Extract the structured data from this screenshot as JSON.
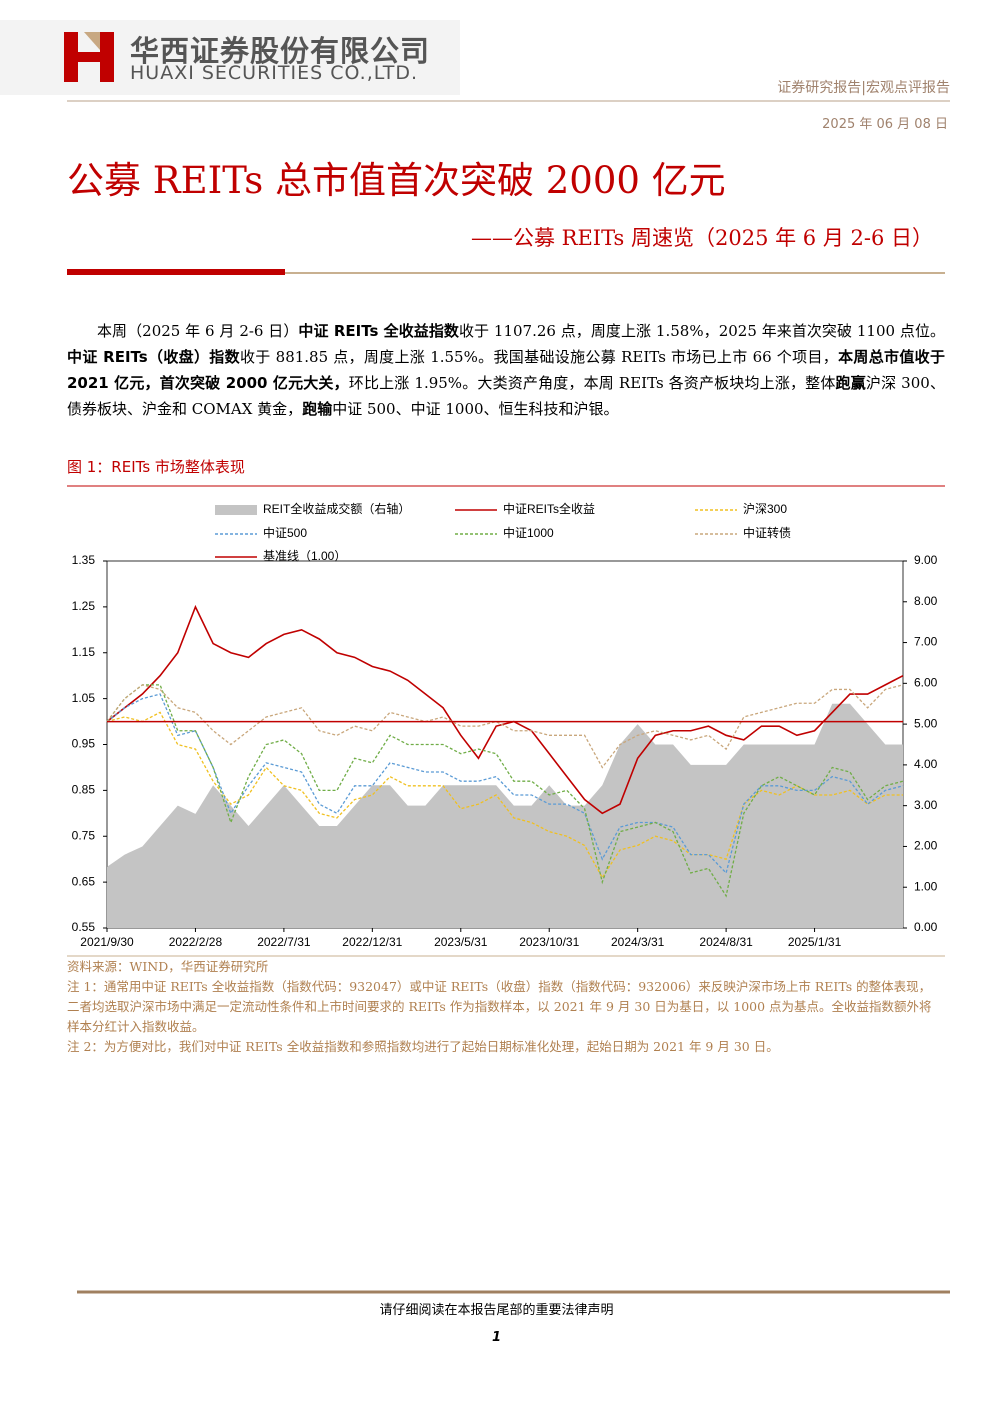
{
  "header": {
    "company_cn": "华西证券股份有限公司",
    "company_en": "HUAXI SECURITIES CO.,LTD.",
    "report_type": "证券研究报告|宏观点评报告",
    "date": "2025 年 06 月 08 日"
  },
  "title": "公募 REITs 总市值首次突破 2000 亿元",
  "subtitle": "——公募 REITs 周速览（2025 年 6 月 2-6 日）",
  "body": [
    {
      "text": "本周（2025 年 6 月 2-6 日）",
      "bold": false
    },
    {
      "text": "中证 REITs 全收益指数",
      "bold": true
    },
    {
      "text": "收于 1107.26 点，周度上涨 1.58%，2025 年来首次突破 1100 点位。",
      "bold": false
    },
    {
      "text": "中证 REITs（收盘）指数",
      "bold": true
    },
    {
      "text": "收于 881.85 点，周度上涨 1.55%。我国基础设施公募 REITs 市场已上市 66 个项目，",
      "bold": false
    },
    {
      "text": "本周总市值收于 2021 亿元，首次突破 2000 亿元大关，",
      "bold": true
    },
    {
      "text": "环比上涨 1.95%。大类资产角度，本周 REITs 各资产板块均上涨，整体",
      "bold": false
    },
    {
      "text": "跑赢",
      "bold": true
    },
    {
      "text": "沪深 300、债券板块、沪金和 COMAX 黄金，",
      "bold": false
    },
    {
      "text": "跑输",
      "bold": true
    },
    {
      "text": "中证 500、中证 1000、恒生科技和沪银。",
      "bold": false
    }
  ],
  "figure_title": "图 1：REITs 市场整体表现",
  "chart_data": {
    "type": "line",
    "x": [
      "2021/9/30",
      "2021/10/31",
      "2021/11/30",
      "2021/12/31",
      "2022/1/31",
      "2022/2/28",
      "2022/3/31",
      "2022/4/30",
      "2022/5/31",
      "2022/6/30",
      "2022/7/31",
      "2022/8/31",
      "2022/9/30",
      "2022/10/31",
      "2022/11/30",
      "2022/12/31",
      "2023/1/31",
      "2023/2/28",
      "2023/3/31",
      "2023/4/30",
      "2023/5/31",
      "2023/6/30",
      "2023/7/31",
      "2023/8/31",
      "2023/9/30",
      "2023/10/31",
      "2023/11/30",
      "2023/12/31",
      "2024/1/31",
      "2024/2/29",
      "2024/3/31",
      "2024/4/30",
      "2024/5/31",
      "2024/6/30",
      "2024/7/31",
      "2024/8/31",
      "2024/9/30",
      "2024/10/31",
      "2024/11/30",
      "2024/12/31",
      "2025/1/31",
      "2025/2/28",
      "2025/3/31",
      "2025/4/30",
      "2025/5/31",
      "2025/6/6"
    ],
    "xticks": [
      "2021/9/30",
      "2022/2/28",
      "2022/7/31",
      "2022/12/31",
      "2023/5/31",
      "2023/10/31",
      "2024/3/31",
      "2024/8/31",
      "2025/1/31"
    ],
    "ylim": [
      0.55,
      1.35
    ],
    "yticks": [
      0.55,
      0.65,
      0.75,
      0.85,
      0.95,
      1.05,
      1.15,
      1.25,
      1.35
    ],
    "y2lim": [
      0,
      9
    ],
    "y2ticks": [
      {
        "value": 0,
        "label": "0.00"
      },
      {
        "value": 1,
        "label": "1.00"
      },
      {
        "value": 2,
        "label": "2.00"
      },
      {
        "value": 3,
        "label": "3.00"
      },
      {
        "value": 4,
        "label": "4.00"
      },
      {
        "value": 5,
        "label": "5.00"
      },
      {
        "value": 6,
        "label": "6.00"
      },
      {
        "value": 7,
        "label": "7.00"
      },
      {
        "value": 8,
        "label": "8.00"
      },
      {
        "value": 9,
        "label": "9.00"
      }
    ],
    "series": [
      {
        "name": "REIT全收益成交额（右轴）",
        "color": "#c4c4c4",
        "axis": "y2",
        "style": "area",
        "values": [
          1.5,
          1.8,
          2.0,
          2.5,
          3.0,
          2.8,
          3.5,
          3.0,
          2.5,
          3.0,
          3.5,
          3.0,
          2.5,
          2.5,
          3.0,
          3.5,
          3.5,
          3.0,
          3.0,
          3.5,
          3.5,
          3.5,
          3.5,
          3.0,
          3.0,
          3.5,
          3.0,
          3.0,
          3.5,
          4.5,
          5.0,
          4.5,
          4.5,
          4.0,
          4.0,
          4.0,
          4.5,
          4.5,
          4.5,
          4.5,
          4.5,
          5.5,
          5.5,
          5.0,
          4.5,
          4.5
        ]
      },
      {
        "name": "中证REITs全收益",
        "color": "#c00000",
        "dash": false,
        "values": [
          1.0,
          1.03,
          1.06,
          1.1,
          1.15,
          1.25,
          1.17,
          1.15,
          1.14,
          1.17,
          1.19,
          1.2,
          1.18,
          1.15,
          1.14,
          1.12,
          1.11,
          1.09,
          1.06,
          1.03,
          0.97,
          0.92,
          0.99,
          1.0,
          0.98,
          0.93,
          0.88,
          0.83,
          0.8,
          0.82,
          0.92,
          0.97,
          0.98,
          0.98,
          0.99,
          0.97,
          0.96,
          0.99,
          0.99,
          0.97,
          0.98,
          1.02,
          1.06,
          1.06,
          1.08,
          1.1
        ]
      },
      {
        "name": "沪深300",
        "color": "#f0c020",
        "dash": true,
        "values": [
          1.0,
          1.01,
          1.0,
          1.02,
          0.95,
          0.94,
          0.87,
          0.82,
          0.84,
          0.9,
          0.86,
          0.85,
          0.8,
          0.79,
          0.83,
          0.84,
          0.88,
          0.86,
          0.86,
          0.86,
          0.81,
          0.82,
          0.84,
          0.79,
          0.78,
          0.76,
          0.75,
          0.73,
          0.66,
          0.72,
          0.73,
          0.75,
          0.74,
          0.71,
          0.71,
          0.7,
          0.82,
          0.85,
          0.84,
          0.86,
          0.84,
          0.84,
          0.85,
          0.82,
          0.84,
          0.84
        ]
      },
      {
        "name": "中证500",
        "color": "#5b9bd5",
        "dash": true,
        "values": [
          1.0,
          1.03,
          1.05,
          1.06,
          0.97,
          0.98,
          0.9,
          0.8,
          0.86,
          0.91,
          0.9,
          0.89,
          0.82,
          0.8,
          0.86,
          0.86,
          0.91,
          0.9,
          0.89,
          0.89,
          0.87,
          0.87,
          0.88,
          0.84,
          0.84,
          0.82,
          0.82,
          0.8,
          0.7,
          0.77,
          0.78,
          0.78,
          0.77,
          0.71,
          0.71,
          0.67,
          0.82,
          0.86,
          0.86,
          0.85,
          0.85,
          0.88,
          0.87,
          0.82,
          0.85,
          0.86
        ]
      },
      {
        "name": "中证1000",
        "color": "#70ad47",
        "dash": true,
        "values": [
          1.0,
          1.05,
          1.08,
          1.08,
          0.98,
          0.98,
          0.9,
          0.78,
          0.88,
          0.95,
          0.96,
          0.93,
          0.85,
          0.85,
          0.92,
          0.91,
          0.97,
          0.95,
          0.95,
          0.95,
          0.93,
          0.94,
          0.93,
          0.87,
          0.87,
          0.84,
          0.85,
          0.81,
          0.65,
          0.76,
          0.77,
          0.78,
          0.76,
          0.67,
          0.68,
          0.62,
          0.8,
          0.86,
          0.88,
          0.86,
          0.84,
          0.9,
          0.89,
          0.83,
          0.86,
          0.87
        ]
      },
      {
        "name": "中证转债",
        "color": "#c9a77c",
        "dash": true,
        "values": [
          1.0,
          1.05,
          1.08,
          1.07,
          1.03,
          1.02,
          0.98,
          0.95,
          0.98,
          1.01,
          1.02,
          1.03,
          0.98,
          0.97,
          0.99,
          0.98,
          1.02,
          1.01,
          1.0,
          1.01,
          0.99,
          0.99,
          1.0,
          0.98,
          0.98,
          0.97,
          0.97,
          0.97,
          0.9,
          0.95,
          0.97,
          0.98,
          0.97,
          0.96,
          0.97,
          0.94,
          1.01,
          1.02,
          1.03,
          1.04,
          1.04,
          1.07,
          1.07,
          1.03,
          1.07,
          1.08
        ]
      },
      {
        "name": "基准线（1.00）",
        "color": "#c00000",
        "style": "hline",
        "value": 1
      }
    ]
  },
  "source": "资料来源：WIND，华西证券研究所",
  "notes": [
    "注 1：通常用中证 REITs 全收益指数（指数代码：932047）或中证 REITs（收盘）指数（指数代码：932006）来反映沪深市场上市 REITs 的整体表现，二者均选取沪深市场中满足一定流动性条件和上市时间要求的 REITs 作为指数样本，以 2021 年 9 月 30 日为基日，以 1000 点为基点。全收益指数额外将样本分红计入指数收益。",
    "注 2：为方便对比，我们对中证 REITs 全收益指数和参照指数均进行了起始日期标准化处理，起始日期为 2021 年 9 月 30 日。"
  ],
  "footer": {
    "disclaimer": "请仔细阅读在本报告尾部的重要法律声明",
    "page": "1"
  }
}
